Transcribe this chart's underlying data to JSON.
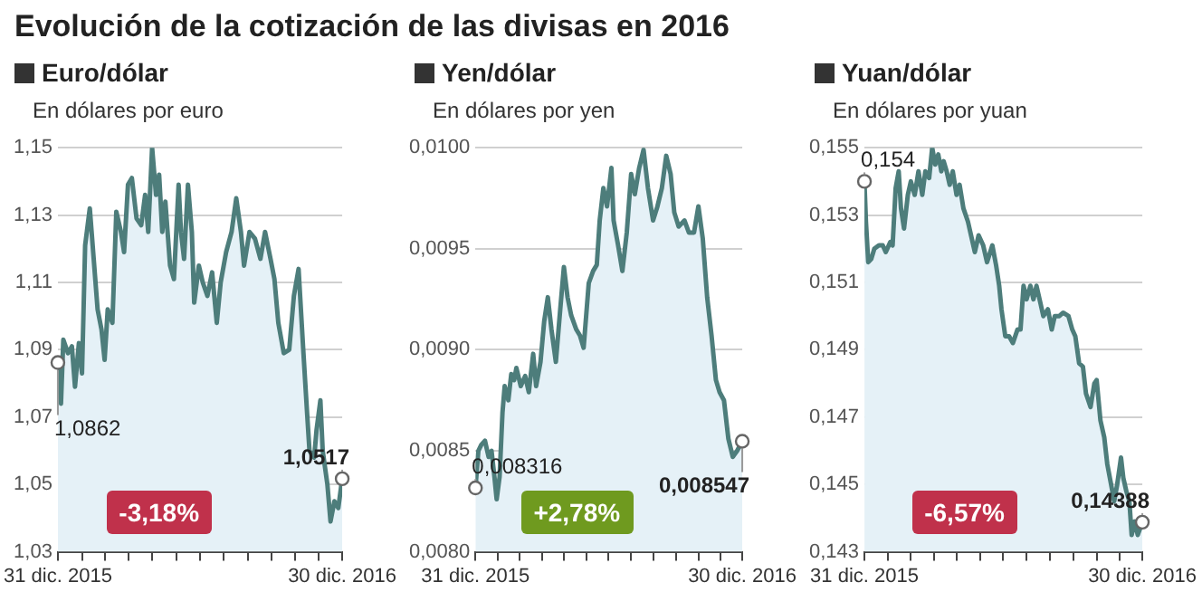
{
  "chart_data": [
    {
      "type": "area",
      "title": "Euro/dólar",
      "subtitle": "En dólares por euro",
      "annotations": [
        "Evolución de la cotización de las divisas en 2016",
        {
          "text": "1,0862",
          "x": "2015-12-31",
          "y": 1.0862
        },
        {
          "text": "1,0517",
          "x": "2016-12-30",
          "y": 1.0517
        },
        "-3,18%"
      ],
      "x": [
        "2015-12-31",
        "2016-01-04",
        "2016-01-07",
        "2016-01-13",
        "2016-01-18",
        "2016-01-22",
        "2016-01-27",
        "2016-01-31",
        "2016-02-04",
        "2016-02-10",
        "2016-02-15",
        "2016-02-20",
        "2016-02-25",
        "2016-02-29",
        "2016-03-04",
        "2016-03-10",
        "2016-03-15",
        "2016-03-21",
        "2016-03-25",
        "2016-03-30",
        "2016-04-04",
        "2016-04-10",
        "2016-04-16",
        "2016-04-21",
        "2016-04-25",
        "2016-04-30",
        "2016-05-05",
        "2016-05-09",
        "2016-05-13",
        "2016-05-17",
        "2016-05-23",
        "2016-05-28",
        "2016-06-03",
        "2016-06-06",
        "2016-06-10",
        "2016-06-15",
        "2016-06-20",
        "2016-06-23",
        "2016-06-29",
        "2016-07-04",
        "2016-07-10",
        "2016-07-16",
        "2016-07-22",
        "2016-07-27",
        "2016-08-03",
        "2016-08-10",
        "2016-08-16",
        "2016-08-22",
        "2016-08-26",
        "2016-09-02",
        "2016-09-09",
        "2016-09-16",
        "2016-09-22",
        "2016-09-29",
        "2016-10-04",
        "2016-10-09",
        "2016-10-16",
        "2016-10-23",
        "2016-10-29",
        "2016-11-04",
        "2016-11-10",
        "2016-11-15",
        "2016-11-18",
        "2016-11-24",
        "2016-11-27",
        "2016-12-02",
        "2016-12-05",
        "2016-12-11",
        "2016-12-15",
        "2016-12-20",
        "2016-12-25",
        "2016-12-30"
      ],
      "series": [
        {
          "color": "#4d7d7b",
          "values": [
            1.0862,
            1.074,
            1.093,
            1.089,
            1.091,
            1.079,
            1.092,
            1.083,
            1.121,
            1.132,
            1.117,
            1.102,
            1.096,
            1.087,
            1.102,
            1.098,
            1.131,
            1.125,
            1.119,
            1.139,
            1.141,
            1.129,
            1.127,
            1.136,
            1.125,
            1.15,
            1.136,
            1.142,
            1.125,
            1.134,
            1.115,
            1.111,
            1.139,
            1.125,
            1.117,
            1.139,
            1.125,
            1.104,
            1.115,
            1.11,
            1.106,
            1.113,
            1.098,
            1.11,
            1.119,
            1.125,
            1.135,
            1.125,
            1.115,
            1.125,
            1.123,
            1.117,
            1.125,
            1.117,
            1.111,
            1.098,
            1.089,
            1.09,
            1.106,
            1.114,
            1.09,
            1.071,
            1.06,
            1.058,
            1.066,
            1.075,
            1.06,
            1.05,
            1.039,
            1.045,
            1.043,
            1.0517
          ]
        }
      ],
      "xlim": [
        "2015-12-31",
        "2016-12-30"
      ],
      "xticks": [
        {
          "value": "2015-12-31",
          "label": "31 dic. 2015"
        },
        {
          "value": "2016-01-31",
          "label": null
        },
        {
          "value": "2016-02-29",
          "label": null
        },
        {
          "value": "2016-03-31",
          "label": null
        },
        {
          "value": "2016-04-30",
          "label": null
        },
        {
          "value": "2016-05-31",
          "label": null
        },
        {
          "value": "2016-06-30",
          "label": null
        },
        {
          "value": "2016-07-31",
          "label": null
        },
        {
          "value": "2016-08-31",
          "label": null
        },
        {
          "value": "2016-09-30",
          "label": null
        },
        {
          "value": "2016-10-31",
          "label": null
        },
        {
          "value": "2016-11-30",
          "label": null
        },
        {
          "value": "2016-12-30",
          "label": "30 dic. 2016"
        }
      ],
      "ylim": [
        1.03,
        1.15
      ],
      "yticks": [
        {
          "value": 1.03,
          "label": "1,03"
        },
        {
          "value": 1.05,
          "label": "1,05"
        },
        {
          "value": 1.07,
          "label": "1,07"
        },
        {
          "value": 1.09,
          "label": "1,09"
        },
        {
          "value": 1.11,
          "label": "1,11"
        },
        {
          "value": 1.13,
          "label": "1,13"
        },
        {
          "value": 1.15,
          "label": "1,15"
        }
      ],
      "grid": "y"
    },
    {
      "type": "area",
      "title": "Yen/dólar",
      "subtitle": "En dólares por yen",
      "annotations": [
        {
          "text": "0,008316",
          "x": "2015-12-31",
          "y": 0.008316
        },
        {
          "text": "0,008547",
          "x": "2016-12-30",
          "y": 0.008547
        },
        "+2,78%"
      ],
      "x": [
        "2015-12-31",
        "2016-01-04",
        "2016-01-08",
        "2016-01-13",
        "2016-01-18",
        "2016-01-22",
        "2016-01-26",
        "2016-01-29",
        "2016-02-02",
        "2016-02-06",
        "2016-02-09",
        "2016-02-14",
        "2016-02-18",
        "2016-02-22",
        "2016-02-25",
        "2016-03-02",
        "2016-03-08",
        "2016-03-13",
        "2016-03-19",
        "2016-03-23",
        "2016-03-29",
        "2016-04-03",
        "2016-04-08",
        "2016-04-13",
        "2016-04-19",
        "2016-04-25",
        "2016-04-30",
        "2016-05-05",
        "2016-05-10",
        "2016-05-17",
        "2016-05-22",
        "2016-05-27",
        "2016-06-03",
        "2016-06-09",
        "2016-06-14",
        "2016-06-18",
        "2016-06-23",
        "2016-06-28",
        "2016-07-04",
        "2016-07-07",
        "2016-07-13",
        "2016-07-19",
        "2016-07-25",
        "2016-07-31",
        "2016-08-05",
        "2016-08-11",
        "2016-08-17",
        "2016-08-23",
        "2016-08-30",
        "2016-09-05",
        "2016-09-11",
        "2016-09-17",
        "2016-09-23",
        "2016-09-28",
        "2016-10-04",
        "2016-10-12",
        "2016-10-18",
        "2016-10-25",
        "2016-10-31",
        "2016-11-06",
        "2016-11-12",
        "2016-11-18",
        "2016-11-24",
        "2016-11-29",
        "2016-12-05",
        "2016-12-11",
        "2016-12-17",
        "2016-12-23",
        "2016-12-30"
      ],
      "series": [
        {
          "color": "#4d7d7b",
          "values": [
            0.008316,
            0.0085,
            0.00853,
            0.00855,
            0.00847,
            0.0085,
            0.00837,
            0.00826,
            0.00837,
            0.00869,
            0.00882,
            0.00875,
            0.00888,
            0.00885,
            0.00891,
            0.00882,
            0.00887,
            0.00879,
            0.00898,
            0.00882,
            0.00894,
            0.00914,
            0.00926,
            0.0091,
            0.00894,
            0.0092,
            0.00941,
            0.00926,
            0.00917,
            0.0091,
            0.00907,
            0.00901,
            0.00933,
            0.00939,
            0.00942,
            0.00964,
            0.0098,
            0.00971,
            0.0099,
            0.00964,
            0.00952,
            0.00939,
            0.00958,
            0.00987,
            0.00977,
            0.0099,
            0.00999,
            0.0098,
            0.00964,
            0.00971,
            0.0098,
            0.00996,
            0.00987,
            0.00968,
            0.00961,
            0.00964,
            0.00958,
            0.00958,
            0.00971,
            0.00955,
            0.00926,
            0.00907,
            0.00885,
            0.00879,
            0.00875,
            0.00856,
            0.00847,
            0.0085,
            0.008547
          ]
        }
      ],
      "xlim": [
        "2015-12-31",
        "2016-12-30"
      ],
      "xticks": [
        {
          "value": "2015-12-31",
          "label": "31 dic. 2015"
        },
        {
          "value": "2016-01-31",
          "label": null
        },
        {
          "value": "2016-02-29",
          "label": null
        },
        {
          "value": "2016-03-31",
          "label": null
        },
        {
          "value": "2016-04-30",
          "label": null
        },
        {
          "value": "2016-05-31",
          "label": null
        },
        {
          "value": "2016-06-30",
          "label": null
        },
        {
          "value": "2016-07-31",
          "label": null
        },
        {
          "value": "2016-08-31",
          "label": null
        },
        {
          "value": "2016-09-30",
          "label": null
        },
        {
          "value": "2016-10-31",
          "label": null
        },
        {
          "value": "2016-11-30",
          "label": null
        },
        {
          "value": "2016-12-30",
          "label": "30 dic. 2016"
        }
      ],
      "ylim": [
        0.008,
        0.01
      ],
      "yticks": [
        {
          "value": 0.008,
          "label": "0,0080"
        },
        {
          "value": 0.0085,
          "label": "0,0085"
        },
        {
          "value": 0.009,
          "label": "0,0090"
        },
        {
          "value": 0.0095,
          "label": "0,0095"
        },
        {
          "value": 0.01,
          "label": "0,0100"
        }
      ],
      "grid": "y"
    },
    {
      "type": "area",
      "title": "Yuan/dólar",
      "subtitle": "En dólares por yuan",
      "annotations": [
        {
          "text": "0,154",
          "x": "2015-12-31",
          "y": 0.154
        },
        {
          "text": "0,14388",
          "x": "2016-12-30",
          "y": 0.14388
        },
        "-6,57%"
      ],
      "x": [
        "2015-12-31",
        "2016-01-02",
        "2016-01-05",
        "2016-01-09",
        "2016-01-13",
        "2016-01-19",
        "2016-01-24",
        "2016-01-28",
        "2016-02-03",
        "2016-02-06",
        "2016-02-10",
        "2016-02-14",
        "2016-02-17",
        "2016-02-21",
        "2016-02-26",
        "2016-03-01",
        "2016-03-06",
        "2016-03-11",
        "2016-03-16",
        "2016-03-20",
        "2016-03-25",
        "2016-03-29",
        "2016-04-02",
        "2016-04-06",
        "2016-04-10",
        "2016-04-13",
        "2016-04-17",
        "2016-04-21",
        "2016-04-25",
        "2016-04-30",
        "2016-05-04",
        "2016-05-09",
        "2016-05-15",
        "2016-05-19",
        "2016-05-24",
        "2016-05-29",
        "2016-06-04",
        "2016-06-09",
        "2016-06-16",
        "2016-06-21",
        "2016-06-25",
        "2016-06-28",
        "2016-07-03",
        "2016-07-08",
        "2016-07-13",
        "2016-07-19",
        "2016-07-23",
        "2016-07-27",
        "2016-07-31",
        "2016-08-05",
        "2016-08-09",
        "2016-08-13",
        "2016-08-18",
        "2016-08-22",
        "2016-08-28",
        "2016-09-02",
        "2016-09-06",
        "2016-09-12",
        "2016-09-17",
        "2016-09-24",
        "2016-09-29",
        "2016-10-03",
        "2016-10-08",
        "2016-10-13",
        "2016-10-17",
        "2016-10-23",
        "2016-10-28",
        "2016-10-31",
        "2016-11-05",
        "2016-11-10",
        "2016-11-14",
        "2016-11-19",
        "2016-11-23",
        "2016-11-27",
        "2016-12-02",
        "2016-12-05",
        "2016-12-09",
        "2016-12-13",
        "2016-12-16",
        "2016-12-20",
        "2016-12-24",
        "2016-12-30"
      ],
      "series": [
        {
          "color": "#4d7d7b",
          "values": [
            0.154,
            0.1528,
            0.1516,
            0.1517,
            0.152,
            0.1521,
            0.1521,
            0.1519,
            0.1522,
            0.1521,
            0.1538,
            0.1543,
            0.1532,
            0.1526,
            0.1536,
            0.154,
            0.1536,
            0.1543,
            0.1536,
            0.1543,
            0.1541,
            0.155,
            0.1545,
            0.1548,
            0.1543,
            0.1546,
            0.1543,
            0.1539,
            0.1543,
            0.1536,
            0.1539,
            0.1532,
            0.1528,
            0.1524,
            0.1519,
            0.1524,
            0.1521,
            0.1516,
            0.1521,
            0.1515,
            0.1509,
            0.1502,
            0.1494,
            0.1494,
            0.1492,
            0.1496,
            0.1496,
            0.1509,
            0.1505,
            0.1509,
            0.1505,
            0.1509,
            0.1504,
            0.15,
            0.1502,
            0.1496,
            0.15,
            0.15,
            0.1501,
            0.15,
            0.1496,
            0.1494,
            0.1486,
            0.1485,
            0.1477,
            0.1473,
            0.148,
            0.1481,
            0.1469,
            0.1464,
            0.1456,
            0.145,
            0.1445,
            0.145,
            0.1458,
            0.1452,
            0.1448,
            0.1445,
            0.1435,
            0.1439,
            0.1435,
            0.14388
          ]
        }
      ],
      "xlim": [
        "2015-12-31",
        "2016-12-30"
      ],
      "xticks": [
        {
          "value": "2015-12-31",
          "label": "31 dic. 2015"
        },
        {
          "value": "2016-01-31",
          "label": null
        },
        {
          "value": "2016-02-29",
          "label": null
        },
        {
          "value": "2016-03-31",
          "label": null
        },
        {
          "value": "2016-04-30",
          "label": null
        },
        {
          "value": "2016-05-31",
          "label": null
        },
        {
          "value": "2016-06-30",
          "label": null
        },
        {
          "value": "2016-07-31",
          "label": null
        },
        {
          "value": "2016-08-31",
          "label": null
        },
        {
          "value": "2016-09-30",
          "label": null
        },
        {
          "value": "2016-10-31",
          "label": null
        },
        {
          "value": "2016-11-30",
          "label": null
        },
        {
          "value": "2016-12-30",
          "label": "30 dic. 2016"
        }
      ],
      "ylim": [
        0.143,
        0.155
      ],
      "yticks": [
        {
          "value": 0.143,
          "label": "0,143"
        },
        {
          "value": 0.145,
          "label": "0,145"
        },
        {
          "value": 0.147,
          "label": "0,147"
        },
        {
          "value": 0.149,
          "label": "0,149"
        },
        {
          "value": 0.151,
          "label": "0,151"
        },
        {
          "value": 0.153,
          "label": "0,153"
        },
        {
          "value": 0.155,
          "label": "0,155"
        }
      ],
      "grid": "y"
    }
  ]
}
